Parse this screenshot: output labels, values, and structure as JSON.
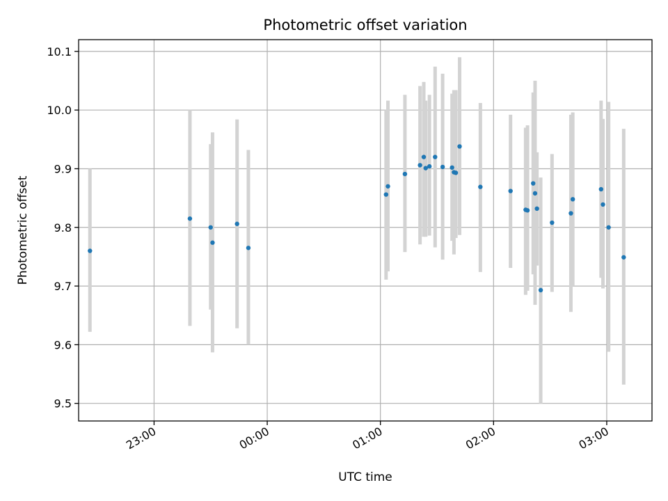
{
  "chart_data": {
    "type": "scatter",
    "title": "Photometric offset variation",
    "xlabel": "UTC time",
    "ylabel": "Photometric offset",
    "x_ticks": [
      "23:00",
      "00:00",
      "01:00",
      "02:00",
      "03:00"
    ],
    "y_ticks": [
      "9.5",
      "9.6",
      "9.7",
      "9.8",
      "9.9",
      "10.0",
      "10.1"
    ],
    "xlim": [
      "22:20",
      "03:24"
    ],
    "ylim": [
      9.47,
      10.12
    ],
    "grid": true,
    "marker_color": "#1f77b4",
    "errorbar_color": "#d3d3d3",
    "points": [
      {
        "x": "22:26",
        "y": 9.76,
        "low": 9.622,
        "high": 9.9
      },
      {
        "x": "23:19",
        "y": 9.815,
        "low": 9.632,
        "high": 10.0
      },
      {
        "x": "23:30",
        "y": 9.8,
        "low": 9.66,
        "high": 9.942
      },
      {
        "x": "23:31",
        "y": 9.774,
        "low": 9.587,
        "high": 9.962
      },
      {
        "x": "23:44",
        "y": 9.806,
        "low": 9.628,
        "high": 9.984
      },
      {
        "x": "23:50",
        "y": 9.765,
        "low": 9.6,
        "high": 9.932
      },
      {
        "x": "01:03",
        "y": 9.856,
        "low": 9.711,
        "high": 10.0
      },
      {
        "x": "01:04",
        "y": 9.87,
        "low": 9.725,
        "high": 10.016
      },
      {
        "x": "01:13",
        "y": 9.891,
        "low": 9.758,
        "high": 10.026
      },
      {
        "x": "01:21",
        "y": 9.906,
        "low": 9.771,
        "high": 10.041
      },
      {
        "x": "01:23",
        "y": 9.92,
        "low": 9.784,
        "high": 10.048
      },
      {
        "x": "01:24",
        "y": 9.901,
        "low": 9.784,
        "high": 10.016
      },
      {
        "x": "01:26",
        "y": 9.904,
        "low": 9.786,
        "high": 10.026
      },
      {
        "x": "01:29",
        "y": 9.92,
        "low": 9.766,
        "high": 10.074
      },
      {
        "x": "01:33",
        "y": 9.903,
        "low": 9.745,
        "high": 10.062
      },
      {
        "x": "01:38",
        "y": 9.902,
        "low": 9.777,
        "high": 10.028
      },
      {
        "x": "01:39",
        "y": 9.894,
        "low": 9.754,
        "high": 10.034
      },
      {
        "x": "01:40",
        "y": 9.893,
        "low": 9.782,
        "high": 10.034
      },
      {
        "x": "01:42",
        "y": 9.938,
        "low": 9.787,
        "high": 10.09
      },
      {
        "x": "01:53",
        "y": 9.869,
        "low": 9.724,
        "high": 10.012
      },
      {
        "x": "02:09",
        "y": 9.862,
        "low": 9.731,
        "high": 9.992
      },
      {
        "x": "02:17",
        "y": 9.83,
        "low": 9.685,
        "high": 9.97
      },
      {
        "x": "02:18",
        "y": 9.829,
        "low": 9.692,
        "high": 9.974
      },
      {
        "x": "02:21",
        "y": 9.875,
        "low": 9.72,
        "high": 10.03
      },
      {
        "x": "02:22",
        "y": 9.858,
        "low": 9.668,
        "high": 10.05
      },
      {
        "x": "02:23",
        "y": 9.832,
        "low": 9.735,
        "high": 9.928
      },
      {
        "x": "02:25",
        "y": 9.693,
        "low": 9.5,
        "high": 9.885
      },
      {
        "x": "02:31",
        "y": 9.808,
        "low": 9.69,
        "high": 9.925
      },
      {
        "x": "02:41",
        "y": 9.824,
        "low": 9.656,
        "high": 9.992
      },
      {
        "x": "02:42",
        "y": 9.848,
        "low": 9.7,
        "high": 9.996
      },
      {
        "x": "02:57",
        "y": 9.865,
        "low": 9.714,
        "high": 10.016
      },
      {
        "x": "02:58",
        "y": 9.839,
        "low": 9.696,
        "high": 9.985
      },
      {
        "x": "03:01",
        "y": 9.8,
        "low": 9.588,
        "high": 10.014
      },
      {
        "x": "03:09",
        "y": 9.749,
        "low": 9.532,
        "high": 9.968
      }
    ]
  }
}
